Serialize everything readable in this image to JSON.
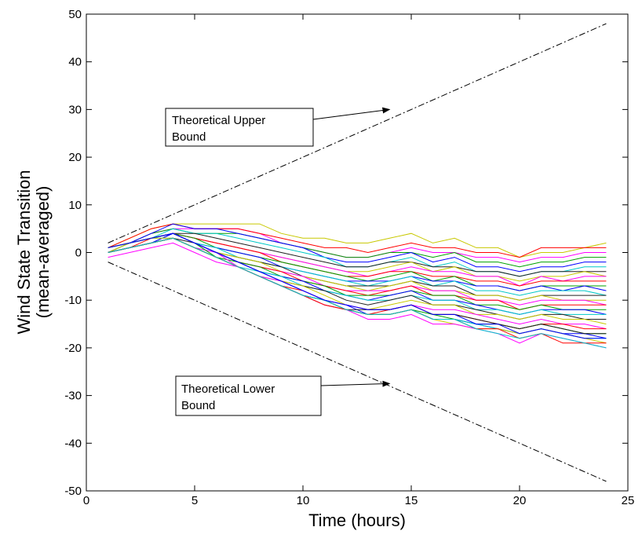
{
  "chart_data": {
    "type": "line",
    "title": "",
    "xlabel": "Time (hours)",
    "ylabel_lines": [
      "Wind State Transition",
      "(mean-averaged)"
    ],
    "xlim": [
      0,
      25
    ],
    "ylim": [
      -50,
      50
    ],
    "xticks": [
      0,
      5,
      10,
      15,
      20,
      25
    ],
    "yticks": [
      -50,
      -40,
      -30,
      -20,
      -10,
      0,
      10,
      20,
      30,
      40,
      50
    ],
    "grid": false,
    "legend": "none",
    "x": [
      1,
      2,
      3,
      4,
      5,
      6,
      7,
      8,
      9,
      10,
      11,
      12,
      13,
      14,
      15,
      16,
      17,
      18,
      19,
      20,
      21,
      22,
      23,
      24
    ],
    "bounds": [
      {
        "name": "upper",
        "color": "#000000",
        "points": [
          [
            1,
            2
          ],
          [
            24,
            48
          ]
        ]
      },
      {
        "name": "lower",
        "color": "#000000",
        "points": [
          [
            1,
            -2
          ],
          [
            24,
            -48
          ]
        ]
      }
    ],
    "series": [
      {
        "color": "#c8c800",
        "values": [
          1,
          3,
          5,
          6,
          6,
          6,
          6,
          6,
          4,
          3,
          3,
          2,
          2,
          3,
          4,
          2,
          3,
          1,
          1,
          -1,
          0,
          0,
          1,
          2
        ]
      },
      {
        "color": "#ff00ff",
        "values": [
          0,
          2,
          4,
          5,
          5,
          5,
          5,
          4,
          2,
          1,
          0,
          -1,
          -1,
          0,
          1,
          0,
          0,
          -1,
          -1,
          -2,
          -1,
          -1,
          0,
          0
        ]
      },
      {
        "color": "#ff0000",
        "values": [
          1,
          3,
          5,
          6,
          5,
          5,
          5,
          4,
          3,
          2,
          1,
          1,
          0,
          1,
          2,
          1,
          1,
          0,
          0,
          -1,
          1,
          1,
          1,
          1
        ]
      },
      {
        "color": "#00a000",
        "values": [
          0,
          2,
          4,
          5,
          4,
          4,
          4,
          3,
          2,
          1,
          0,
          -1,
          -1,
          0,
          0,
          -1,
          0,
          -2,
          -2,
          -3,
          -2,
          -2,
          -1,
          -1
        ]
      },
      {
        "color": "#0000ff",
        "values": [
          1,
          2,
          4,
          6,
          5,
          5,
          4,
          3,
          2,
          1,
          -1,
          -2,
          -2,
          -1,
          0,
          -2,
          -1,
          -3,
          -3,
          -4,
          -3,
          -3,
          -2,
          -2
        ]
      },
      {
        "color": "#00c8c8",
        "values": [
          0,
          2,
          3,
          5,
          4,
          4,
          3,
          2,
          1,
          0,
          -1,
          -3,
          -3,
          -2,
          -1,
          -3,
          -2,
          -4,
          -4,
          -5,
          -4,
          -4,
          -3,
          -3
        ]
      },
      {
        "color": "#202020",
        "values": [
          1,
          2,
          3,
          4,
          4,
          3,
          2,
          1,
          0,
          -1,
          -2,
          -3,
          -3,
          -2,
          -2,
          -3,
          -3,
          -4,
          -4,
          -5,
          -4,
          -4,
          -4,
          -4
        ]
      },
      {
        "color": "#c8c800",
        "values": [
          0,
          2,
          3,
          4,
          3,
          2,
          1,
          0,
          -1,
          -2,
          -3,
          -4,
          -4,
          -3,
          -2,
          -4,
          -3,
          -5,
          -5,
          -6,
          -5,
          -5,
          -4,
          -5
        ]
      },
      {
        "color": "#ff00ff",
        "values": [
          1,
          2,
          3,
          4,
          3,
          2,
          1,
          0,
          -1,
          -2,
          -3,
          -4,
          -5,
          -4,
          -3,
          -4,
          -4,
          -5,
          -5,
          -7,
          -5,
          -6,
          -5,
          -5
        ]
      },
      {
        "color": "#ff0000",
        "values": [
          0,
          1,
          3,
          4,
          3,
          2,
          1,
          0,
          -2,
          -3,
          -4,
          -5,
          -5,
          -4,
          -4,
          -5,
          -5,
          -6,
          -6,
          -7,
          -6,
          -6,
          -6,
          -6
        ]
      },
      {
        "color": "#00a000",
        "values": [
          1,
          2,
          3,
          4,
          3,
          1,
          0,
          -1,
          -2,
          -3,
          -4,
          -5,
          -6,
          -5,
          -4,
          -6,
          -5,
          -7,
          -7,
          -8,
          -7,
          -7,
          -7,
          -7
        ]
      },
      {
        "color": "#0000ff",
        "values": [
          0,
          1,
          2,
          4,
          2,
          1,
          0,
          -1,
          -3,
          -4,
          -5,
          -6,
          -6,
          -6,
          -5,
          -6,
          -6,
          -7,
          -7,
          -8,
          -7,
          -8,
          -7,
          -8
        ]
      },
      {
        "color": "#00c8c8",
        "values": [
          1,
          2,
          3,
          4,
          2,
          1,
          -1,
          -2,
          -3,
          -4,
          -5,
          -6,
          -7,
          -6,
          -5,
          -7,
          -6,
          -8,
          -8,
          -9,
          -8,
          -8,
          -8,
          -9
        ]
      },
      {
        "color": "#202020",
        "values": [
          0,
          1,
          2,
          3,
          2,
          0,
          -1,
          -2,
          -3,
          -5,
          -6,
          -7,
          -7,
          -7,
          -6,
          -7,
          -7,
          -9,
          -9,
          -10,
          -9,
          -9,
          -9,
          -9
        ]
      },
      {
        "color": "#c8c800",
        "values": [
          1,
          2,
          3,
          4,
          2,
          0,
          -1,
          -2,
          -4,
          -5,
          -6,
          -7,
          -8,
          -7,
          -6,
          -8,
          -8,
          -9,
          -9,
          -10,
          -9,
          -10,
          -10,
          -10
        ]
      },
      {
        "color": "#ff00ff",
        "values": [
          0,
          1,
          2,
          3,
          1,
          0,
          -2,
          -3,
          -4,
          -5,
          -7,
          -8,
          -8,
          -8,
          -7,
          -8,
          -8,
          -10,
          -10,
          -11,
          -10,
          -10,
          -10,
          -11
        ]
      },
      {
        "color": "#ff0000",
        "values": [
          1,
          2,
          3,
          4,
          2,
          0,
          -2,
          -3,
          -4,
          -6,
          -7,
          -8,
          -9,
          -8,
          -7,
          -9,
          -9,
          -10,
          -10,
          -12,
          -11,
          -11,
          -11,
          -11
        ]
      },
      {
        "color": "#00a000",
        "values": [
          0,
          1,
          2,
          3,
          1,
          -1,
          -2,
          -3,
          -5,
          -6,
          -7,
          -9,
          -9,
          -9,
          -8,
          -9,
          -9,
          -11,
          -11,
          -12,
          -11,
          -12,
          -12,
          -12
        ]
      },
      {
        "color": "#0000ff",
        "values": [
          1,
          2,
          3,
          4,
          2,
          0,
          -2,
          -4,
          -5,
          -6,
          -8,
          -9,
          -10,
          -9,
          -8,
          -10,
          -10,
          -11,
          -12,
          -13,
          -12,
          -12,
          -12,
          -13
        ]
      },
      {
        "color": "#00c8c8",
        "values": [
          0,
          1,
          2,
          3,
          1,
          -1,
          -3,
          -4,
          -5,
          -7,
          -8,
          -9,
          -10,
          -10,
          -9,
          -10,
          -10,
          -12,
          -12,
          -13,
          -12,
          -13,
          -13,
          -13
        ]
      },
      {
        "color": "#202020",
        "values": [
          1,
          2,
          3,
          4,
          2,
          0,
          -2,
          -4,
          -6,
          -7,
          -8,
          -10,
          -11,
          -10,
          -9,
          -11,
          -11,
          -12,
          -13,
          -14,
          -13,
          -13,
          -14,
          -14
        ]
      },
      {
        "color": "#c8c800",
        "values": [
          0,
          1,
          2,
          3,
          1,
          -1,
          -3,
          -5,
          -6,
          -7,
          -9,
          -11,
          -12,
          -11,
          -10,
          -11,
          -11,
          -13,
          -13,
          -14,
          -13,
          -14,
          -14,
          -15
        ]
      },
      {
        "color": "#ff00ff",
        "values": [
          1,
          2,
          3,
          4,
          2,
          0,
          -3,
          -5,
          -6,
          -8,
          -10,
          -11,
          -12,
          -12,
          -11,
          -12,
          -12,
          -13,
          -14,
          -15,
          -14,
          -15,
          -15,
          -16
        ]
      },
      {
        "color": "#ff0000",
        "values": [
          0,
          1,
          2,
          3,
          1,
          -1,
          -3,
          -5,
          -7,
          -8,
          -10,
          -12,
          -13,
          -12,
          -11,
          -13,
          -13,
          -14,
          -15,
          -16,
          -15,
          -15,
          -16,
          -16
        ]
      },
      {
        "color": "#00a000",
        "values": [
          1,
          2,
          3,
          4,
          2,
          -1,
          -3,
          -5,
          -7,
          -9,
          -10,
          -12,
          -13,
          -13,
          -12,
          -13,
          -14,
          -15,
          -15,
          -16,
          -15,
          -16,
          -17,
          -17
        ]
      },
      {
        "color": "#0000ff",
        "values": [
          0,
          1,
          2,
          4,
          2,
          0,
          -2,
          -4,
          -6,
          -8,
          -10,
          -11,
          -13,
          -13,
          -12,
          -14,
          -14,
          -15,
          -16,
          -17,
          -16,
          -17,
          -17,
          -18
        ]
      },
      {
        "color": "#00c8c8",
        "values": [
          1,
          2,
          3,
          3,
          1,
          -1,
          -3,
          -5,
          -7,
          -9,
          -11,
          -12,
          -13,
          -13,
          -12,
          -14,
          -14,
          -15,
          -16,
          -17,
          -16,
          -17,
          -18,
          -18
        ]
      },
      {
        "color": "#202020",
        "values": [
          0,
          1,
          2,
          3,
          1,
          -1,
          -3,
          -5,
          -7,
          -9,
          -10,
          -12,
          -12,
          -12,
          -11,
          -13,
          -13,
          -14,
          -15,
          -16,
          -15,
          -16,
          -17,
          -17
        ]
      },
      {
        "color": "#c8c800",
        "values": [
          1,
          2,
          3,
          3,
          1,
          -1,
          -3,
          -5,
          -7,
          -9,
          -11,
          -12,
          -13,
          -13,
          -12,
          -14,
          -15,
          -16,
          -16,
          -17,
          -16,
          -17,
          -18,
          -19
        ]
      },
      {
        "color": "#ff00ff",
        "values": [
          -1,
          0,
          1,
          2,
          0,
          -2,
          -3,
          -5,
          -7,
          -9,
          -11,
          -12,
          -14,
          -14,
          -13,
          -15,
          -15,
          -16,
          -17,
          -19,
          -17,
          -18,
          -19,
          -20
        ]
      },
      {
        "color": "#ff0000",
        "values": [
          0,
          1,
          2,
          3,
          1,
          -1,
          -3,
          -5,
          -7,
          -9,
          -11,
          -12,
          -13,
          -13,
          -12,
          -14,
          -14,
          -16,
          -16,
          -18,
          -17,
          -19,
          -19,
          -19
        ]
      },
      {
        "color": "#00c8c8",
        "values": [
          0,
          1,
          2,
          3,
          1,
          -1,
          -3,
          -5,
          -7,
          -9,
          -10,
          -12,
          -13,
          -13,
          -12,
          -14,
          -14,
          -16,
          -17,
          -18,
          -17,
          -18,
          -19,
          -20
        ]
      },
      {
        "color": "#0000ff",
        "values": [
          1,
          2,
          3,
          4,
          2,
          0,
          -2,
          -4,
          -6,
          -8,
          -10,
          -11,
          -12,
          -12,
          -11,
          -13,
          -13,
          -15,
          -15,
          -17,
          -16,
          -17,
          -18,
          -18
        ]
      }
    ],
    "annotations": [
      {
        "name": "upper-bound",
        "lines": [
          "Theoretical Upper",
          "Bound"
        ],
        "arrow_to": [
          14,
          30
        ]
      },
      {
        "name": "lower-bound",
        "lines": [
          "Theoretical Lower",
          "Bound"
        ],
        "arrow_to": [
          14,
          -27.5
        ]
      }
    ]
  }
}
